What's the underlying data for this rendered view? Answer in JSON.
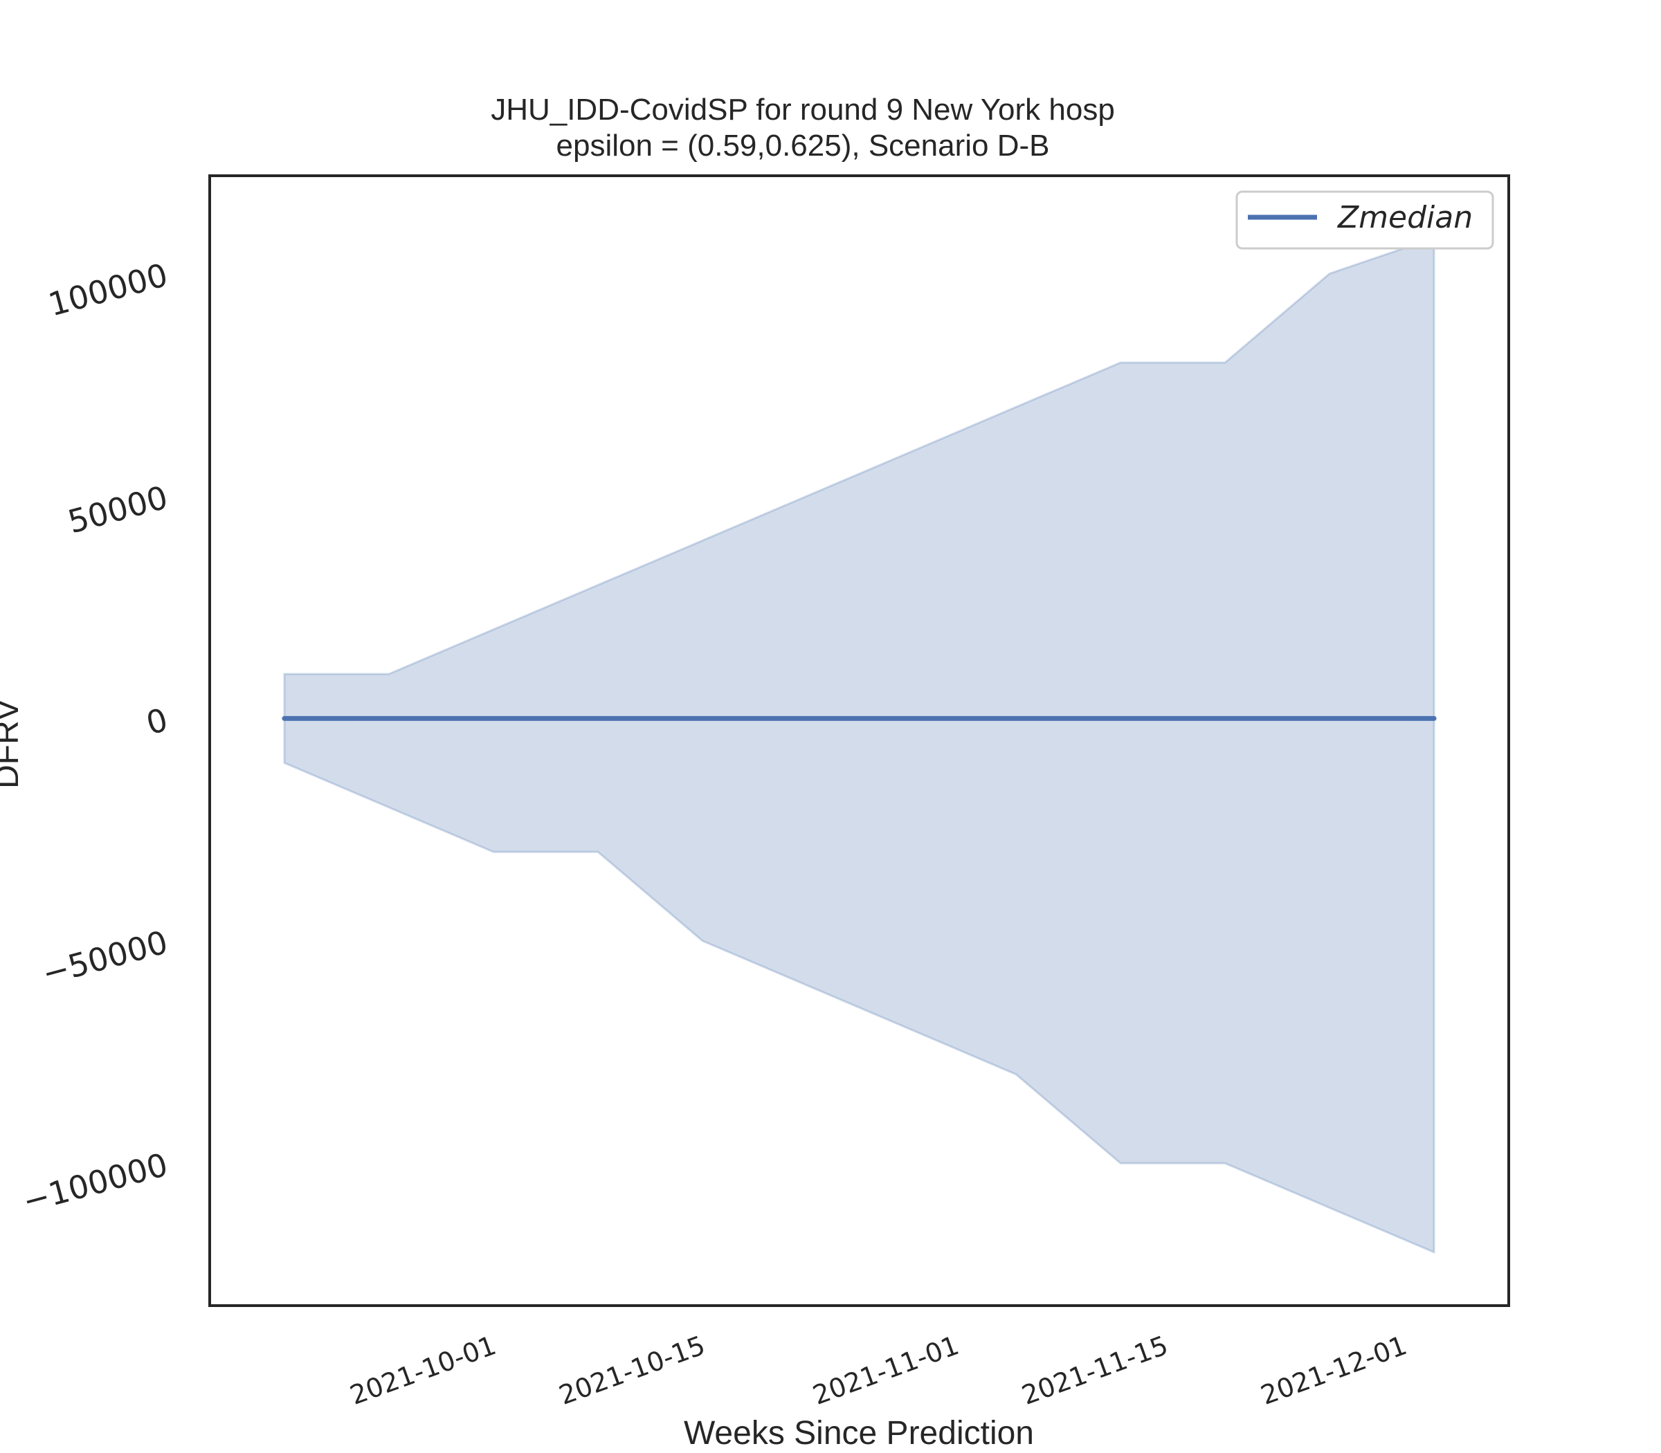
{
  "chart_data": {
    "type": "line",
    "title": "JHU_IDD-CovidSP for round 9 New York  hosp",
    "subtitle": "epsilon = (0.59,0.625), Scenario D-B",
    "xlabel": "Weeks Since Prediction",
    "ylabel": "DFRV",
    "x": [
      "2021-09-18",
      "2021-09-25",
      "2021-10-02",
      "2021-10-09",
      "2021-10-16",
      "2021-10-23",
      "2021-10-30",
      "2021-11-06",
      "2021-11-13",
      "2021-11-20",
      "2021-11-27",
      "2021-12-04"
    ],
    "series": [
      {
        "name": "Zmedian",
        "values": [
          0,
          0,
          0,
          0,
          0,
          0,
          0,
          0,
          0,
          0,
          0,
          0
        ],
        "band_upper": [
          10000,
          10000,
          20000,
          30000,
          40000,
          50000,
          60000,
          70000,
          80000,
          80000,
          100000,
          108000
        ],
        "band_lower": [
          -10000,
          -20000,
          -30000,
          -30000,
          -50000,
          -60000,
          -70000,
          -80000,
          -100000,
          -100000,
          -110000,
          -120000
        ]
      }
    ],
    "xticks": [
      "2021-10-01",
      "2021-10-15",
      "2021-11-01",
      "2021-11-15",
      "2021-12-01"
    ],
    "yticks": [
      -100000,
      -50000,
      0,
      50000,
      100000
    ],
    "ytick_labels": [
      "−100000",
      "−50000",
      "0",
      "50000",
      "100000"
    ],
    "ylim": [
      -132000,
      122000
    ],
    "xlim": [
      "2021-09-13",
      "2021-12-09"
    ],
    "grid": false,
    "legend": "top-right",
    "colors": {
      "line": "#4c72b0",
      "band": "#4c72b0",
      "axes": "#262626"
    }
  }
}
